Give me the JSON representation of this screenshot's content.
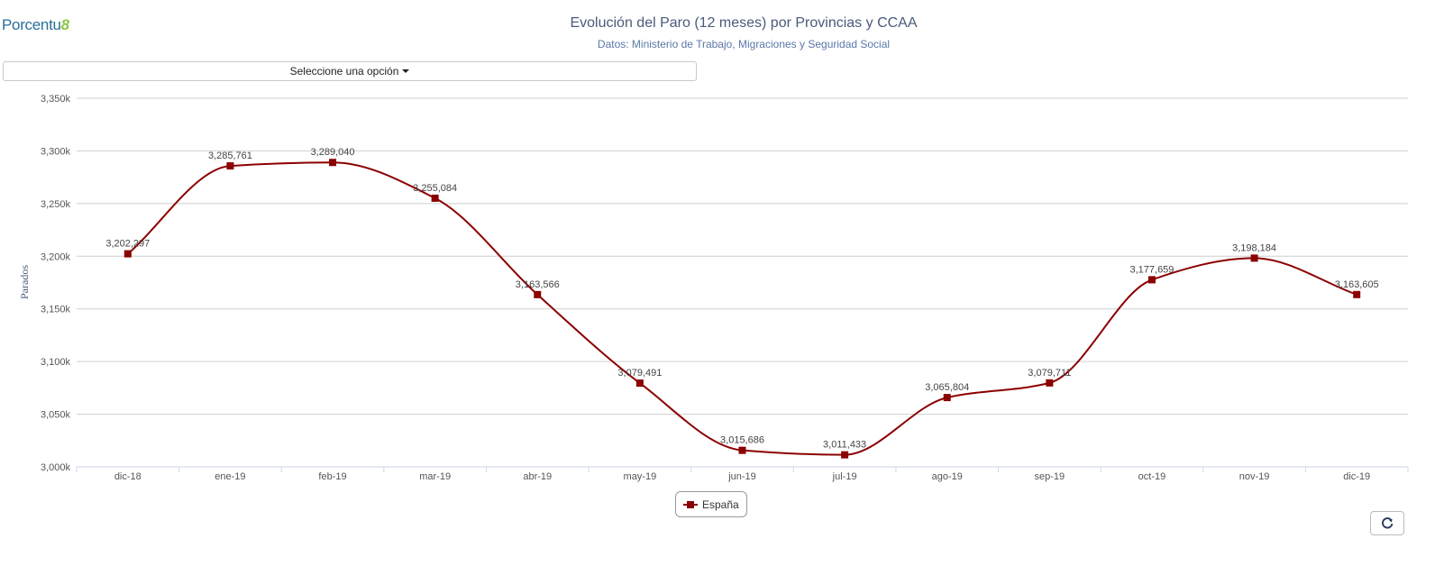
{
  "logo": {
    "text": "Porcentu",
    "mark": "8"
  },
  "header": {
    "title": "Evolución del Paro (12 meses) por Provincias y CCAA",
    "subtitle": "Datos: Ministerio de Trabajo, Migraciones y Seguridad Social"
  },
  "selector": {
    "label": "Seleccione una opción"
  },
  "refresh_icon": "refresh-icon",
  "chart_data": {
    "type": "line",
    "title": "Evolución del Paro (12 meses) por Provincias y CCAA",
    "subtitle": "Datos: Ministerio de Trabajo, Migraciones y Seguridad Social",
    "xlabel": "",
    "ylabel": "Parados",
    "categories": [
      "dic-18",
      "ene-19",
      "feb-19",
      "mar-19",
      "abr-19",
      "may-19",
      "jun-19",
      "jul-19",
      "ago-19",
      "sep-19",
      "oct-19",
      "nov-19",
      "dic-19"
    ],
    "series": [
      {
        "name": "España",
        "color": "#8b0000",
        "values": [
          3202297,
          3285761,
          3289040,
          3255084,
          3163566,
          3079491,
          3015686,
          3011433,
          3065804,
          3079711,
          3177659,
          3198184,
          3163605
        ],
        "labels": [
          "3,202,297",
          "3,285,761",
          "3,289,040",
          "3,255,084",
          "3,163,566",
          "3,079,491",
          "3,015,686",
          "3,011,433",
          "3,065,804",
          "3,079,711",
          "3,177,659",
          "3,198,184",
          "3,163,605"
        ]
      }
    ],
    "ylim": [
      3000000,
      3350000
    ],
    "yticks": [
      3000000,
      3050000,
      3100000,
      3150000,
      3200000,
      3250000,
      3300000,
      3350000
    ],
    "ytick_labels": [
      "3,000k",
      "3,050k",
      "3,100k",
      "3,150k",
      "3,200k",
      "3,250k",
      "3,300k",
      "3,350k"
    ],
    "grid": true,
    "legend": "bottom-center"
  }
}
